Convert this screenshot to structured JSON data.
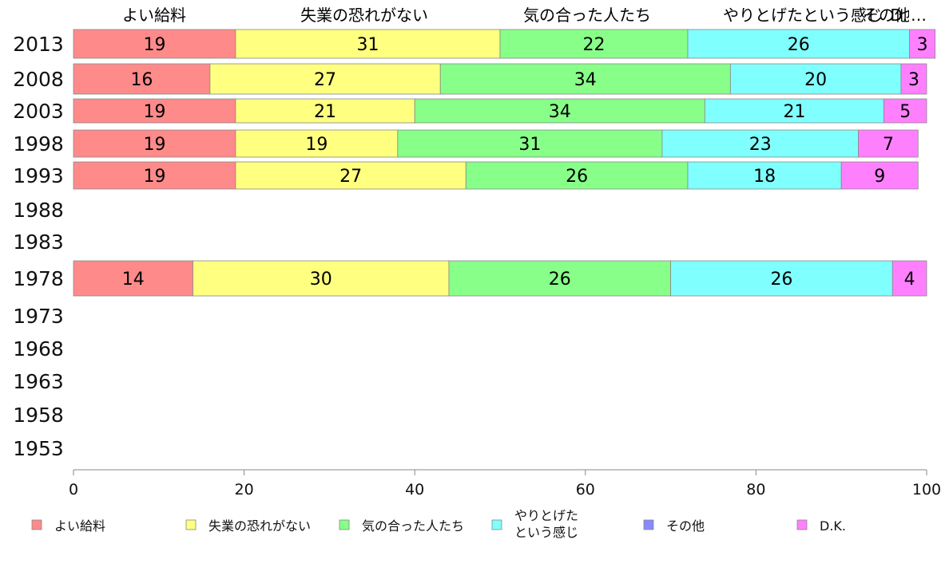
{
  "chart_data": {
    "type": "bar",
    "orientation": "horizontal",
    "stacked": true,
    "categories": [
      "2013",
      "2008",
      "2003",
      "1998",
      "1993",
      "1988",
      "1983",
      "1978",
      "1973",
      "1968",
      "1963",
      "1958",
      "1953"
    ],
    "series": [
      {
        "name": "よい給料",
        "color": "#ff8a8a",
        "values": [
          19,
          16,
          19,
          19,
          19,
          null,
          null,
          14,
          null,
          null,
          null,
          null,
          null
        ]
      },
      {
        "name": "失業の恐れがない",
        "color": "#ffff80",
        "values": [
          31,
          27,
          21,
          19,
          27,
          null,
          null,
          30,
          null,
          null,
          null,
          null,
          null
        ]
      },
      {
        "name": "気の合った人たち",
        "color": "#88ff88",
        "values": [
          22,
          34,
          34,
          31,
          26,
          null,
          null,
          26,
          null,
          null,
          null,
          null,
          null
        ]
      },
      {
        "name": "やりとげたという感じ",
        "color": "#80ffff",
        "values": [
          26,
          20,
          21,
          23,
          18,
          null,
          null,
          26,
          null,
          null,
          null,
          null,
          null
        ]
      },
      {
        "name": "その他",
        "color": "#8888ff",
        "values": [
          0,
          0,
          0,
          0,
          0,
          null,
          null,
          0,
          null,
          null,
          null,
          null,
          null
        ]
      },
      {
        "name": "D.K.",
        "color": "#ff80ff",
        "values": [
          3,
          3,
          5,
          7,
          9,
          null,
          null,
          4,
          null,
          null,
          null,
          null,
          null
        ]
      }
    ],
    "top_labels": [
      "よい給料",
      "失業の恐れがない",
      "気の合った人たち",
      "やりとげたという感じ",
      "その他",
      "D.K."
    ],
    "xlim": [
      0,
      100
    ],
    "x_ticks": [
      0,
      20,
      40,
      60,
      80,
      100
    ],
    "grid": false,
    "legend_position": "bottom",
    "legend": [
      {
        "label_lines": [
          "よい給料"
        ],
        "color": "#ff8a8a"
      },
      {
        "label_lines": [
          "失業の恐れがない"
        ],
        "color": "#ffff80"
      },
      {
        "label_lines": [
          "気の合った人たち"
        ],
        "color": "#88ff88"
      },
      {
        "label_lines": [
          "やりとげた",
          "という感じ"
        ],
        "color": "#80ffff"
      },
      {
        "label_lines": [
          "その他"
        ],
        "color": "#8888ff"
      },
      {
        "label_lines": [
          "D.K."
        ],
        "color": "#ff80ff"
      }
    ]
  }
}
